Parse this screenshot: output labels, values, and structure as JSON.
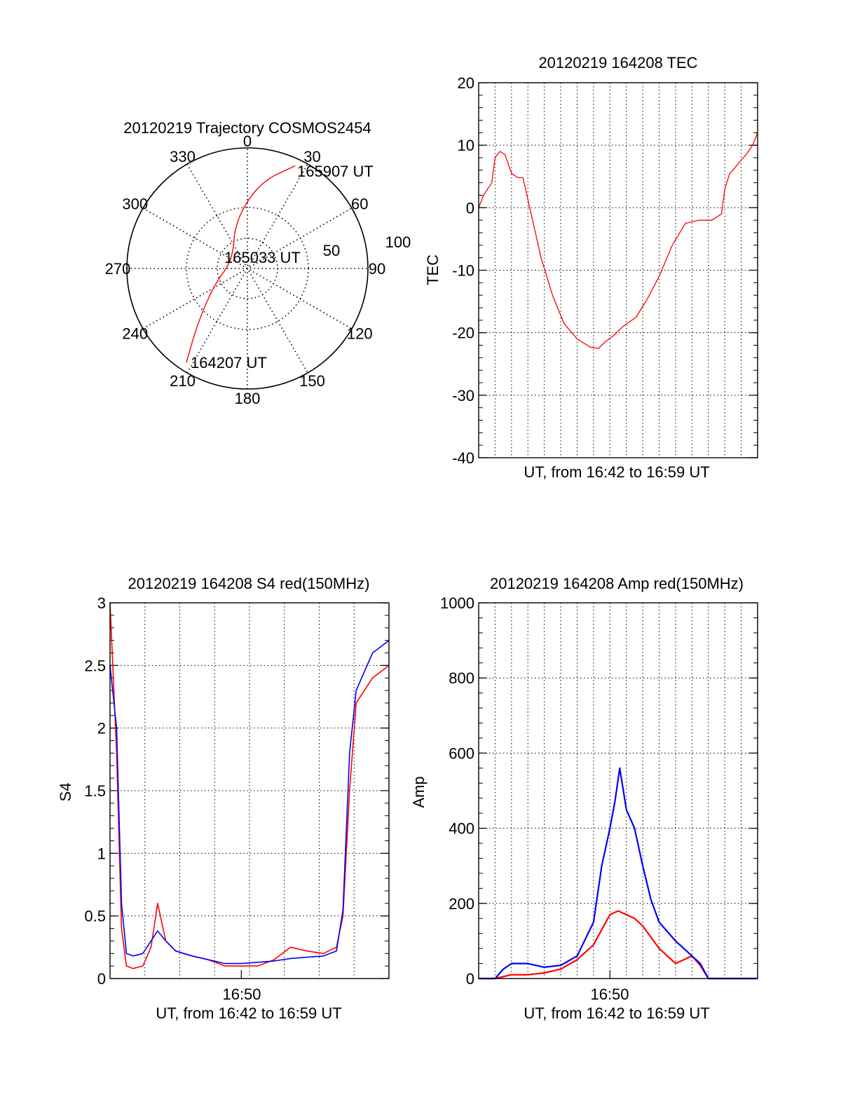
{
  "figure": {
    "panels": {
      "polar": {
        "title": "20120219 Trajectory COSMOS2454",
        "azimuth_labels": [
          "0",
          "30",
          "60",
          "90",
          "120",
          "150",
          "180",
          "210",
          "240",
          "270",
          "300",
          "330"
        ],
        "ring_labels": [
          "50",
          "100"
        ],
        "start_label": "164207 UT",
        "mid_label": "165033 UT",
        "end_label": "165907 UT"
      },
      "tec": {
        "title": "20120219 164208 TEC",
        "xlabel": "UT, from 16:42 to 16:59 UT",
        "ylabel": "TEC"
      },
      "s4": {
        "title": "20120219 164208 S4 red(150MHz)",
        "xlabel": "UT, from 16:42 to 16:59 UT",
        "ylabel": "S4",
        "xtick_label": "16:50"
      },
      "amp": {
        "title": "20120219 164208 Amp red(150MHz)",
        "xlabel": "UT, from 16:42 to 16:59 UT",
        "ylabel": "Amp",
        "xtick_label": "16:50"
      }
    },
    "colors": {
      "red": "#ff0000",
      "blue": "#0000ff",
      "grid": "#000000"
    }
  },
  "chart_data": [
    {
      "type": "scatter",
      "title": "20120219 Trajectory COSMOS2454",
      "coordinate_system": "polar (azimuth deg, zenith angle)",
      "series": [
        {
          "color": "#ff0000",
          "points": [
            {
              "label": "164207 UT",
              "azimuth": 213,
              "radius": 93
            },
            {
              "azimuth": 222,
              "radius": 62
            },
            {
              "azimuth": 245,
              "radius": 30
            },
            {
              "label": "165033 UT",
              "azimuth": 300,
              "radius": 14
            },
            {
              "azimuth": 345,
              "radius": 40
            },
            {
              "azimuth": 8,
              "radius": 72
            },
            {
              "label": "165907 UT",
              "azimuth": 25,
              "radius": 94
            }
          ]
        }
      ],
      "radial_ticks": [
        50,
        100
      ]
    },
    {
      "type": "line",
      "title": "20120219 164208 TEC",
      "xlabel": "UT, from 16:42 to 16:59 UT",
      "ylabel": "TEC",
      "xlim": [
        0,
        17
      ],
      "ylim": [
        -40,
        20
      ],
      "yticks": [
        -40,
        -30,
        -20,
        -10,
        0,
        10,
        20
      ],
      "grid": true,
      "series": [
        {
          "color": "#ff0000",
          "x": [
            0,
            0.3,
            0.8,
            1.0,
            1.3,
            1.6,
            2.0,
            2.4,
            2.7,
            3.2,
            3.8,
            4.5,
            5.2,
            6.0,
            6.8,
            7.3,
            7.7,
            8.2,
            8.8,
            9.6,
            10.3,
            11.0,
            11.8,
            12.6,
            13.4,
            14.2,
            14.8,
            15.0,
            15.3,
            15.5,
            15.8,
            16.3,
            16.7,
            17.0
          ],
          "y": [
            0,
            2,
            4,
            8,
            9,
            8.5,
            5.5,
            4.8,
            4.8,
            -1,
            -8,
            -14,
            -18.5,
            -21,
            -22.3,
            -22.5,
            -21.5,
            -20.5,
            -19,
            -17.5,
            -14.5,
            -11,
            -6,
            -2.5,
            -2,
            -2,
            -1,
            3,
            5.5,
            6,
            7,
            8.5,
            10,
            12
          ]
        }
      ]
    },
    {
      "type": "line",
      "title": "20120219 164208 S4 red(150MHz)",
      "xlabel": "UT, from 16:42 to 16:59 UT",
      "ylabel": "S4",
      "xlim": [
        0,
        17
      ],
      "ylim": [
        0,
        3
      ],
      "yticks": [
        0,
        0.5,
        1,
        1.5,
        2,
        2.5,
        3
      ],
      "xtick_labels": [
        {
          "x": 8,
          "label": "16:50"
        }
      ],
      "grid": true,
      "series": [
        {
          "color": "#ff0000",
          "x": [
            0,
            0.4,
            0.7,
            1.0,
            1.4,
            2.0,
            2.5,
            2.9,
            3.4,
            4.0,
            5.0,
            6.0,
            7.0,
            8.0,
            9.0,
            10.0,
            11.0,
            12.0,
            13.0,
            13.8,
            14.2,
            14.6,
            15.0,
            16.0,
            17.0
          ],
          "y": [
            3,
            1.8,
            0.4,
            0.1,
            0.08,
            0.1,
            0.25,
            0.6,
            0.3,
            0.22,
            0.18,
            0.15,
            0.1,
            0.1,
            0.1,
            0.15,
            0.25,
            0.22,
            0.2,
            0.25,
            0.5,
            1.5,
            2.2,
            2.4,
            2.5
          ]
        },
        {
          "color": "#0000ff",
          "x": [
            0,
            0.4,
            0.7,
            1.0,
            1.4,
            2.0,
            2.5,
            2.9,
            3.4,
            4.0,
            5.0,
            6.0,
            7.0,
            8.0,
            9.0,
            10.0,
            11.0,
            12.0,
            13.0,
            13.8,
            14.2,
            14.6,
            15.0,
            16.0,
            17.0
          ],
          "y": [
            2.5,
            2.0,
            0.6,
            0.2,
            0.18,
            0.2,
            0.3,
            0.38,
            0.3,
            0.22,
            0.18,
            0.15,
            0.12,
            0.12,
            0.13,
            0.14,
            0.16,
            0.17,
            0.18,
            0.22,
            0.55,
            1.8,
            2.3,
            2.6,
            2.7
          ]
        }
      ]
    },
    {
      "type": "line",
      "title": "20120219 164208 Amp red(150MHz)",
      "xlabel": "UT, from 16:42 to 16:59 UT",
      "ylabel": "Amp",
      "xlim": [
        0,
        17
      ],
      "ylim": [
        0,
        1000
      ],
      "yticks": [
        0,
        200,
        400,
        600,
        800,
        1000
      ],
      "xtick_labels": [
        {
          "x": 8,
          "label": "16:50"
        }
      ],
      "grid": true,
      "series": [
        {
          "color": "#ff0000",
          "x": [
            0,
            1.0,
            1.5,
            2.0,
            3.0,
            4.0,
            5.0,
            6.0,
            7.0,
            7.5,
            8.0,
            8.5,
            9.0,
            9.5,
            10.0,
            10.5,
            11.0,
            12.0,
            13.0,
            13.5,
            14.0,
            15.0,
            17.0
          ],
          "y": [
            0,
            0,
            5,
            10,
            10,
            15,
            25,
            50,
            90,
            130,
            170,
            180,
            170,
            160,
            140,
            110,
            80,
            40,
            60,
            35,
            0,
            0,
            0
          ]
        },
        {
          "color": "#0000ff",
          "x": [
            0,
            1.0,
            1.5,
            2.0,
            3.0,
            4.0,
            5.0,
            6.0,
            7.0,
            7.5,
            8.0,
            8.3,
            8.6,
            9.0,
            9.5,
            10.0,
            10.5,
            11.0,
            12.0,
            13.0,
            13.5,
            14.0,
            15.0,
            17.0
          ],
          "y": [
            0,
            0,
            25,
            40,
            40,
            30,
            35,
            60,
            150,
            300,
            400,
            470,
            560,
            450,
            400,
            300,
            210,
            150,
            100,
            60,
            40,
            0,
            0,
            0
          ]
        }
      ]
    }
  ]
}
